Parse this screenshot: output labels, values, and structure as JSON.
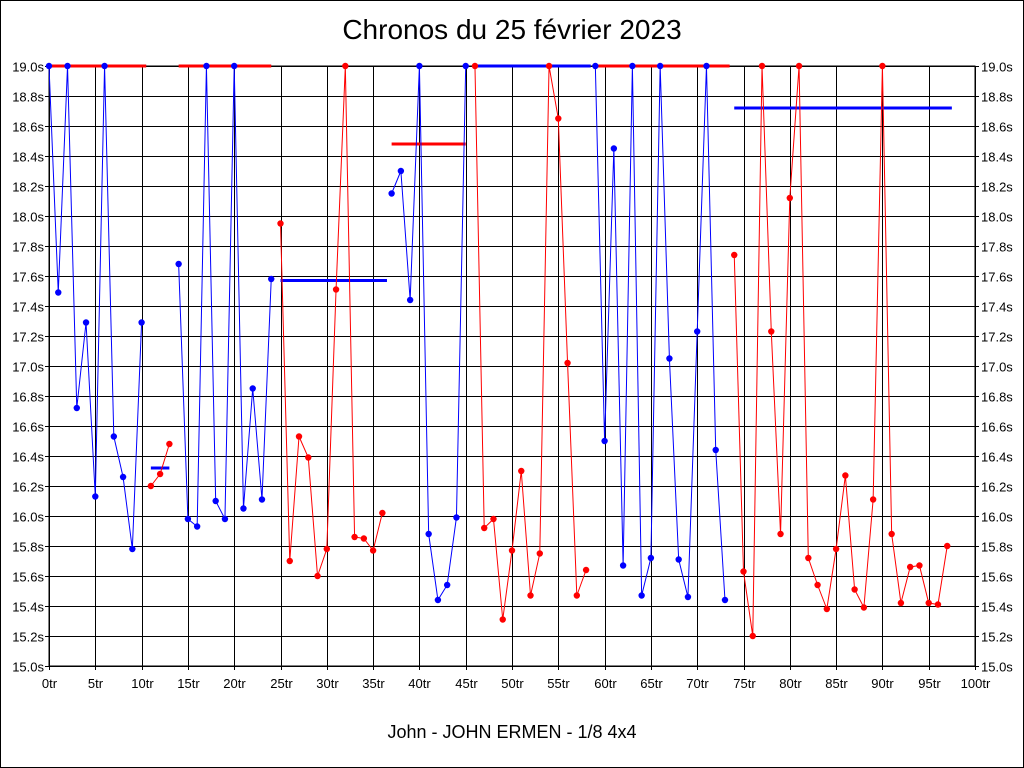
{
  "chart_data": {
    "type": "line",
    "title": "Chronos du 25 février 2023",
    "subtitle": "John - JOHN ERMEN - 1/8 4x4",
    "xlim": [
      0,
      100
    ],
    "ylim": [
      15.0,
      19.0
    ],
    "x_ticks": [
      "0tr",
      "5tr",
      "10tr",
      "15tr",
      "20tr",
      "25tr",
      "30tr",
      "35tr",
      "40tr",
      "45tr",
      "50tr",
      "55tr",
      "60tr",
      "65tr",
      "70tr",
      "75tr",
      "80tr",
      "85tr",
      "90tr",
      "95tr",
      "100tr"
    ],
    "y_ticks": [
      "19.0s",
      "18.8s",
      "18.6s",
      "18.4s",
      "18.2s",
      "18.0s",
      "17.8s",
      "17.6s",
      "17.4s",
      "17.2s",
      "17.0s",
      "16.8s",
      "16.6s",
      "16.4s",
      "16.2s",
      "16.0s",
      "15.8s",
      "15.6s",
      "15.4s",
      "15.2s",
      "15.0s"
    ],
    "grid": true,
    "colors": {
      "blue": "#0000ff",
      "red": "#ff0000"
    },
    "series": [
      {
        "color": "blue",
        "points": [
          [
            0,
            19.0
          ],
          [
            1,
            17.49
          ],
          [
            2,
            19.0
          ],
          [
            3,
            16.72
          ],
          [
            4,
            17.29
          ],
          [
            5,
            16.13
          ],
          [
            6,
            19.0
          ],
          [
            7,
            16.53
          ],
          [
            8,
            16.26
          ],
          [
            9,
            15.78
          ],
          [
            10,
            17.29
          ]
        ]
      },
      {
        "color": "red",
        "points": [
          [
            11,
            16.2
          ],
          [
            12,
            16.28
          ],
          [
            13,
            16.48
          ]
        ]
      },
      {
        "color": "blue",
        "points": [
          [
            14,
            17.68
          ],
          [
            15,
            15.98
          ],
          [
            16,
            15.93
          ],
          [
            17,
            19.0
          ],
          [
            18,
            16.1
          ],
          [
            19,
            15.98
          ],
          [
            20,
            19.0
          ],
          [
            21,
            16.05
          ],
          [
            22,
            16.85
          ],
          [
            23,
            16.11
          ],
          [
            24,
            17.58
          ]
        ]
      },
      {
        "color": "red",
        "points": [
          [
            25,
            17.95
          ],
          [
            26,
            15.7
          ],
          [
            27,
            16.53
          ],
          [
            28,
            16.39
          ],
          [
            29,
            15.6
          ],
          [
            30,
            15.78
          ],
          [
            31,
            17.51
          ],
          [
            32,
            19.0
          ],
          [
            33,
            15.86
          ],
          [
            34,
            15.85
          ],
          [
            35,
            15.77
          ],
          [
            36,
            16.02
          ]
        ]
      },
      {
        "color": "blue",
        "points": [
          [
            37,
            18.15
          ],
          [
            38,
            18.3
          ],
          [
            39,
            17.44
          ],
          [
            40,
            19.0
          ],
          [
            41,
            15.88
          ],
          [
            42,
            15.44
          ],
          [
            43,
            15.54
          ],
          [
            44,
            15.99
          ],
          [
            45,
            19.0
          ]
        ]
      },
      {
        "color": "red",
        "points": [
          [
            46,
            19.0
          ],
          [
            47,
            15.92
          ],
          [
            48,
            15.98
          ],
          [
            49,
            15.31
          ],
          [
            50,
            15.77
          ],
          [
            51,
            16.3
          ],
          [
            52,
            15.47
          ],
          [
            53,
            15.75
          ],
          [
            54,
            19.0
          ],
          [
            55,
            18.65
          ],
          [
            56,
            17.02
          ],
          [
            57,
            15.47
          ],
          [
            58,
            15.64
          ]
        ]
      },
      {
        "color": "blue",
        "points": [
          [
            59,
            19.0
          ],
          [
            60,
            16.5
          ],
          [
            61,
            18.45
          ],
          [
            62,
            15.67
          ],
          [
            63,
            19.0
          ],
          [
            64,
            15.47
          ],
          [
            65,
            15.72
          ],
          [
            66,
            19.0
          ],
          [
            67,
            17.05
          ],
          [
            68,
            15.71
          ],
          [
            69,
            15.46
          ],
          [
            70,
            17.23
          ],
          [
            71,
            19.0
          ],
          [
            72,
            16.44
          ],
          [
            73,
            15.44
          ]
        ]
      },
      {
        "color": "red",
        "points": [
          [
            74,
            17.74
          ],
          [
            75,
            15.63
          ],
          [
            76,
            15.2
          ],
          [
            77,
            19.0
          ],
          [
            78,
            17.23
          ],
          [
            79,
            15.88
          ],
          [
            80,
            18.12
          ],
          [
            81,
            19.0
          ],
          [
            82,
            15.72
          ],
          [
            83,
            15.54
          ],
          [
            84,
            15.38
          ],
          [
            85,
            15.78
          ],
          [
            86,
            16.27
          ],
          [
            87,
            15.51
          ],
          [
            88,
            15.39
          ],
          [
            89,
            16.11
          ],
          [
            90,
            19.0
          ],
          [
            91,
            15.88
          ],
          [
            92,
            15.42
          ],
          [
            93,
            15.66
          ],
          [
            94,
            15.67
          ],
          [
            95,
            15.42
          ],
          [
            96,
            15.41
          ],
          [
            97,
            15.8
          ]
        ]
      }
    ],
    "averages": [
      {
        "color": "red",
        "x_start": 0,
        "x_end": 10.5,
        "y": 19.0
      },
      {
        "color": "blue",
        "x_start": 11,
        "x_end": 13,
        "y": 16.32
      },
      {
        "color": "red",
        "x_start": 14,
        "x_end": 24,
        "y": 19.0
      },
      {
        "color": "blue",
        "x_start": 25,
        "x_end": 36.5,
        "y": 17.57
      },
      {
        "color": "red",
        "x_start": 37,
        "x_end": 45,
        "y": 18.48
      },
      {
        "color": "blue",
        "x_start": 46,
        "x_end": 58.5,
        "y": 19.0
      },
      {
        "color": "red",
        "x_start": 59,
        "x_end": 73.5,
        "y": 19.0
      },
      {
        "color": "blue",
        "x_start": 74,
        "x_end": 97.5,
        "y": 18.72
      }
    ]
  }
}
